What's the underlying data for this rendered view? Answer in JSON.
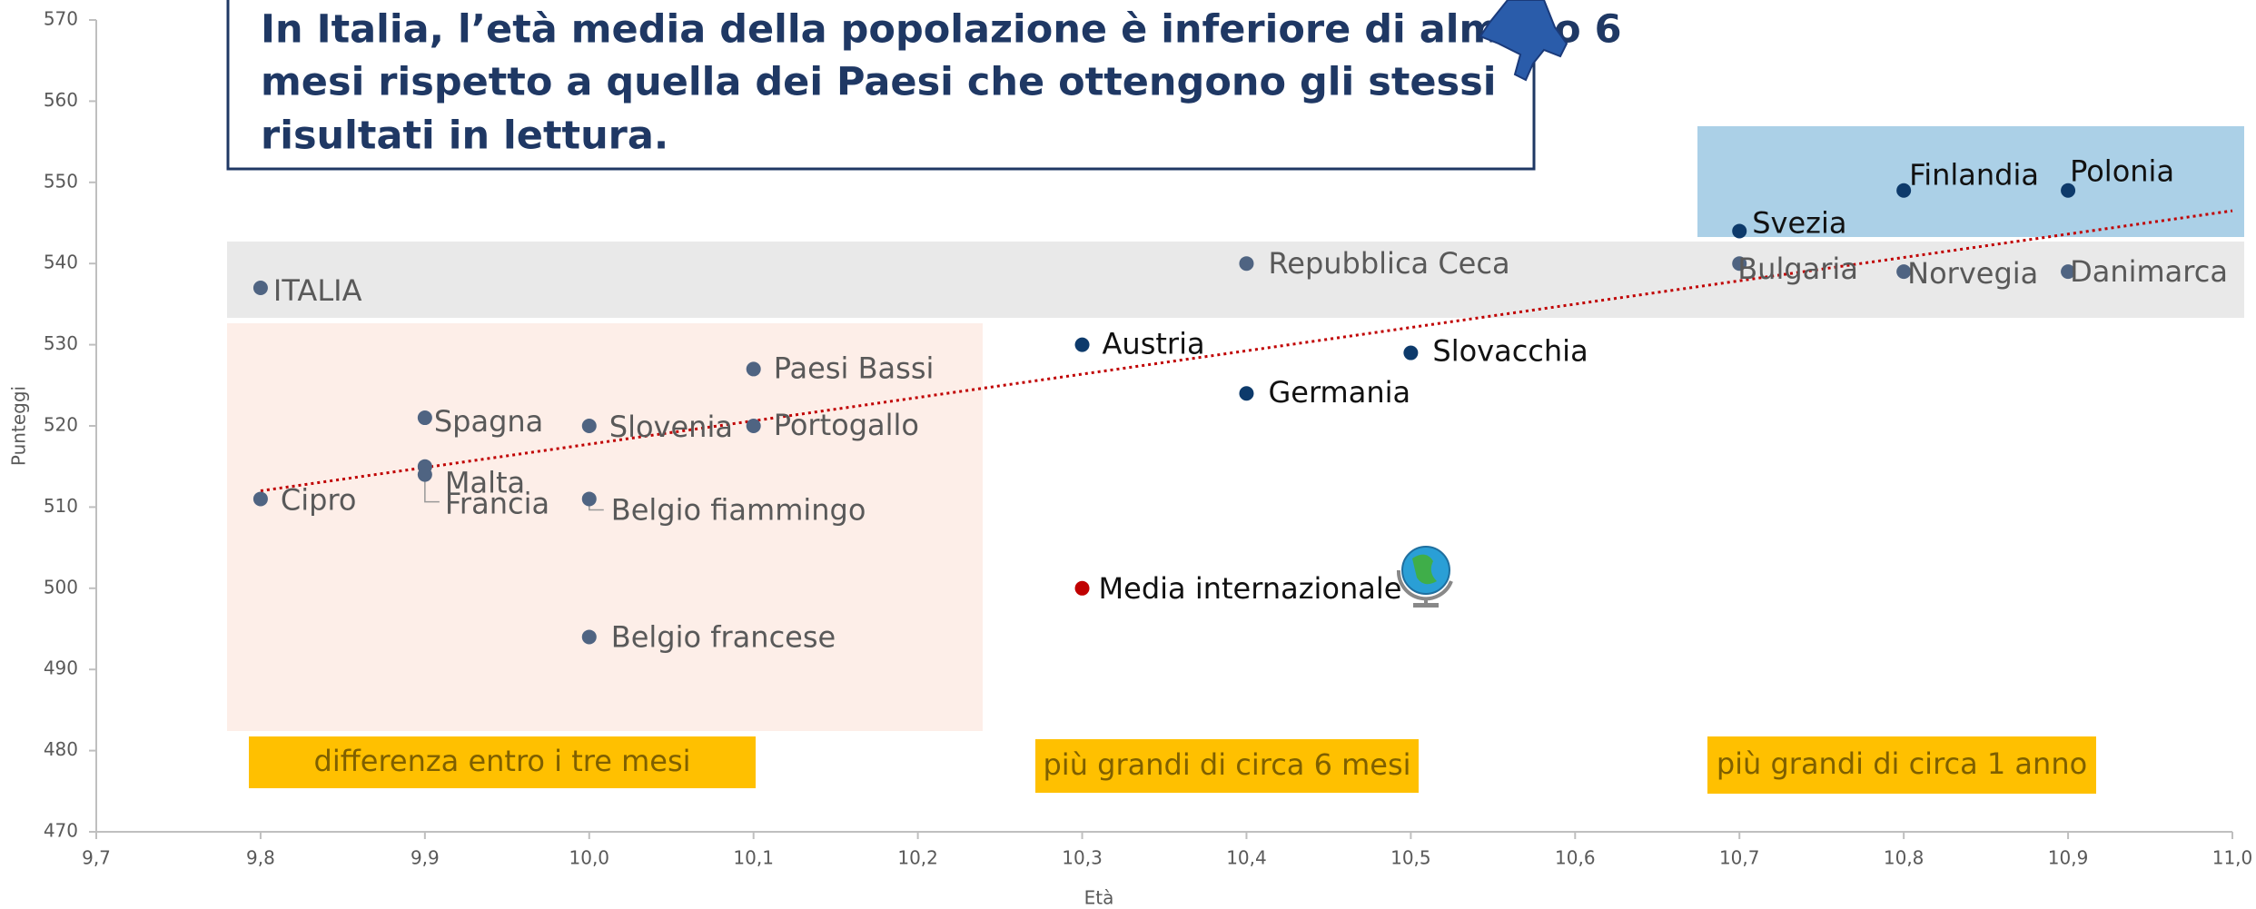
{
  "chart_data": {
    "type": "scatter",
    "title": [
      "In Italia, l’età media della popolazione è inferiore di almeno 6",
      "mesi rispetto a quella dei Paesi che ottengono gli stessi",
      "risultati in lettura."
    ],
    "x_label": "Età",
    "y_label": "Punteggi",
    "labels": [
      "ITALIA",
      "Cipro",
      "Spagna",
      "Malta",
      "Francia",
      "Slovenia",
      "Belgio fiammingo",
      "Belgio francese",
      "Paesi Bassi",
      "Portogallo",
      "Austria",
      "Media internazionale",
      "Repubblica Ceca",
      "Germania",
      "Slovacchia",
      "Svezia",
      "Bulgaria",
      "Finlandia",
      "Norvegia",
      "Polonia",
      "Danimarca"
    ],
    "x": [
      9.8,
      9.8,
      9.9,
      9.9,
      9.9,
      10.0,
      10.0,
      10.0,
      10.1,
      10.1,
      10.3,
      10.3,
      10.4,
      10.4,
      10.5,
      10.7,
      10.7,
      10.8,
      10.8,
      10.9,
      10.9
    ],
    "values": [
      537,
      511,
      521,
      515,
      514,
      520,
      511,
      494,
      527,
      520,
      530,
      500,
      540,
      524,
      529,
      544,
      540,
      549,
      539,
      549,
      539
    ],
    "colors": [
      "#4f6482",
      "#4f6482",
      "#4f6482",
      "#4f6482",
      "#4f6482",
      "#4f6482",
      "#4f6482",
      "#4f6482",
      "#4f6482",
      "#4f6482",
      "#0d3a6b",
      "#c00000",
      "#4f6482",
      "#0d3a6b",
      "#0d3a6b",
      "#0d3a6b",
      "#4f6482",
      "#0d3a6b",
      "#4f6482",
      "#0d3a6b",
      "#4f6482"
    ],
    "trendline": {
      "x": [
        9.8,
        11.0
      ],
      "values": [
        512,
        546.5
      ],
      "color": "#c00000"
    },
    "annotations": [
      "differenza entro i tre mesi",
      "più grandi di circa 6 mesi",
      "più grandi di circa 1 anno"
    ],
    "xlim": [
      9.7,
      11.0
    ],
    "xticks": [
      {
        "value": 9.7,
        "label": "9,7"
      },
      {
        "value": 9.8,
        "label": "9,8"
      },
      {
        "value": 9.9,
        "label": "9,9"
      },
      {
        "value": 10.0,
        "label": "10,0"
      },
      {
        "value": 10.1,
        "label": "10,1"
      },
      {
        "value": 10.2,
        "label": "10,2"
      },
      {
        "value": 10.3,
        "label": "10,3"
      },
      {
        "value": 10.4,
        "label": "10,4"
      },
      {
        "value": 10.5,
        "label": "10,5"
      },
      {
        "value": 10.6,
        "label": "10,6"
      },
      {
        "value": 10.7,
        "label": "10,7"
      },
      {
        "value": 10.8,
        "label": "10,8"
      },
      {
        "value": 10.9,
        "label": "10,9"
      },
      {
        "value": 11.0,
        "label": "11,0"
      }
    ],
    "ylim": [
      470,
      570
    ],
    "yticks": [
      470,
      480,
      490,
      500,
      510,
      520,
      530,
      540,
      550,
      560,
      570
    ]
  }
}
